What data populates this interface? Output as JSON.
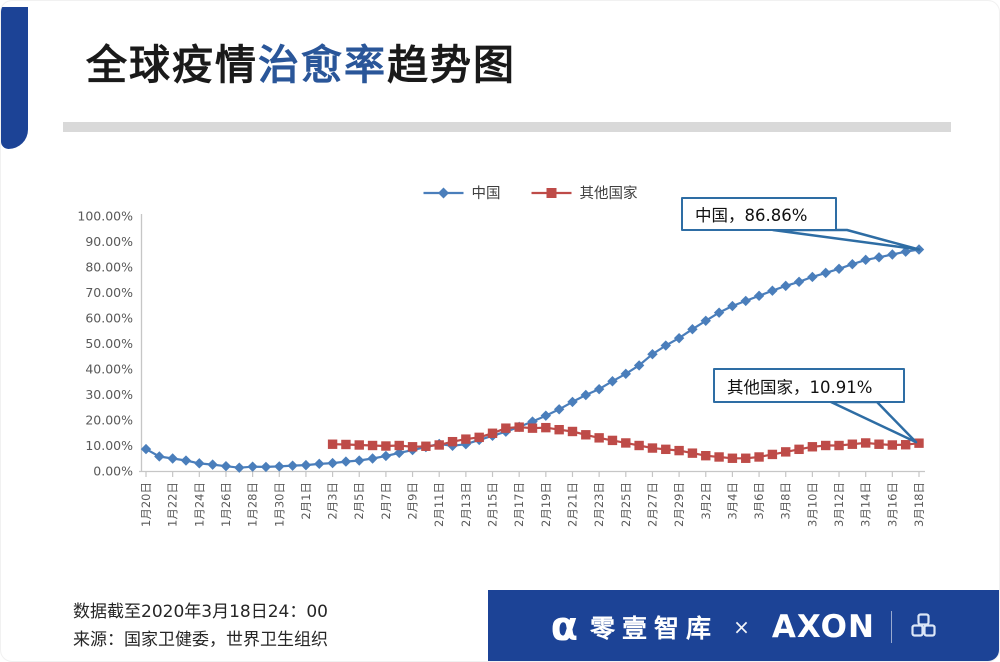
{
  "page": {
    "title_parts": [
      {
        "text": "全球疫情",
        "color": "#1a1a1a"
      },
      {
        "text": "治愈率",
        "color": "#2a5699"
      },
      {
        "text": "趋势图",
        "color": "#1a1a1a"
      }
    ]
  },
  "colors": {
    "accent_blue": "#2a5699",
    "line_blue": "#4a7ebb",
    "line_red": "#be4b48",
    "callout_border": "#2e6da4",
    "footer_bar": "#1c4396",
    "axis_text": "#595959",
    "axis_line": "#c6c6c6",
    "divider_gray": "#d9d9d9"
  },
  "chart_data": {
    "type": "line",
    "title": "全球疫情治愈率趋势图",
    "n_points": 59,
    "x_tick_step": 2,
    "x_tick_labels": [
      "1月20日",
      "1月22日",
      "1月24日",
      "1月26日",
      "1月28日",
      "1月30日",
      "2月1日",
      "2月3日",
      "2月5日",
      "2月7日",
      "2月9日",
      "2月11日",
      "2月13日",
      "2月15日",
      "2月17日",
      "2月19日",
      "2月21日",
      "2月23日",
      "2月25日",
      "2月27日",
      "2月29日",
      "3月2日",
      "3月4日",
      "3月6日",
      "3月8日",
      "3月10日",
      "3月12日",
      "3月14日",
      "3月16日",
      "3月18日"
    ],
    "ylim": [
      0,
      100
    ],
    "y_tick_labels": [
      "100.00%",
      "90.00%",
      "80.00%",
      "70.00%",
      "60.00%",
      "50.00%",
      "40.00%",
      "30.00%",
      "20.00%",
      "10.00%",
      "0.00%"
    ],
    "grid": false,
    "legend_position": "top",
    "series": [
      {
        "name": "中国",
        "color": "#4a7ebb",
        "marker": "diamond",
        "start_index": 0,
        "values": [
          8.6,
          5.7,
          4.9,
          4.1,
          3.0,
          2.5,
          1.9,
          1.3,
          1.7,
          1.6,
          1.8,
          2.1,
          2.3,
          2.8,
          3.1,
          3.7,
          4.1,
          4.9,
          5.9,
          7.1,
          8.2,
          9.4,
          10.6,
          9.9,
          10.5,
          12.2,
          13.8,
          15.4,
          17.3,
          19.4,
          21.7,
          24.2,
          27.1,
          29.8,
          32.1,
          35.2,
          38.1,
          41.4,
          45.8,
          49.2,
          52.1,
          55.6,
          58.9,
          62.1,
          64.7,
          66.7,
          68.7,
          70.7,
          72.6,
          74.2,
          76.1,
          77.7,
          79.3,
          81.1,
          82.8,
          83.8,
          84.9,
          86.0,
          86.86
        ]
      },
      {
        "name": "其他国家",
        "color": "#be4b48",
        "marker": "square",
        "start_index": 14,
        "values": [
          10.5,
          10.4,
          10.2,
          10.0,
          9.8,
          10.0,
          9.5,
          9.7,
          10.2,
          11.5,
          12.5,
          13.2,
          14.8,
          16.8,
          17.2,
          16.8,
          17.0,
          16.2,
          15.5,
          14.2,
          13.0,
          12.0,
          11.0,
          10.0,
          9.0,
          8.5,
          8.0,
          7.0,
          6.0,
          5.5,
          5.0,
          5.0,
          5.5,
          6.5,
          7.5,
          8.5,
          9.5,
          10.0,
          10.0,
          10.5,
          11.0,
          10.5,
          10.2,
          10.3,
          10.91
        ]
      }
    ],
    "annotations": [
      {
        "label": "中国，86.86%",
        "series": "中国",
        "value": "86.86%"
      },
      {
        "label": "其他国家，10.91%",
        "series": "其他国家",
        "value": "10.91%"
      }
    ]
  },
  "footer": {
    "note_line1": "数据截至2020年3月18日24：00",
    "note_line2": "来源：国家卫健委，世界卫生组织",
    "brand": {
      "alpha": "α",
      "name": "零壹智库",
      "cross": "×",
      "partner": "AXON"
    }
  }
}
